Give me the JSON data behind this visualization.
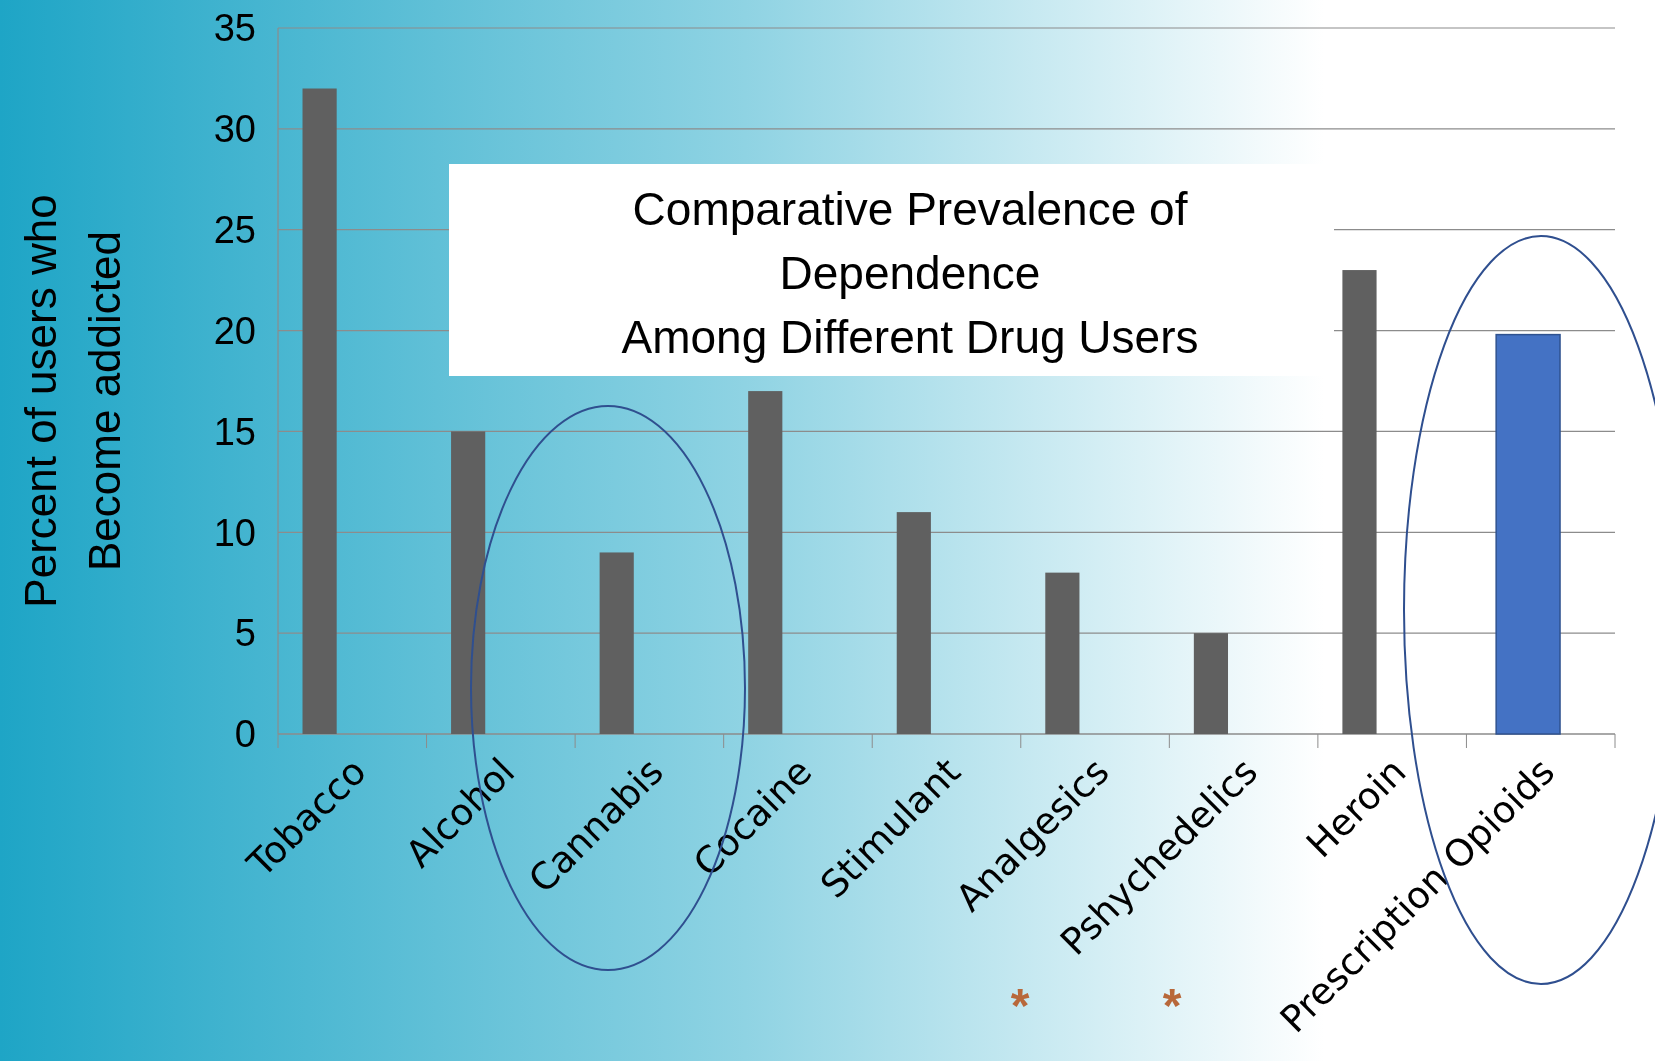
{
  "chart_data": {
    "type": "bar",
    "title": "Comparative Prevalence of\nDependence\nAmong Different Drug Users",
    "ylabel": "Percent of users who\nBecome addicted",
    "categories": [
      "Tobacco",
      "Alcohol",
      "Cannabis",
      "Cocaine",
      "Stimulant",
      "Analgesics",
      "Pshychedelics",
      "Heroin",
      "Prescription Opioids"
    ],
    "values": [
      32,
      15,
      9,
      17,
      11,
      8,
      5,
      23,
      19.8
    ],
    "colors": [
      "#606060",
      "#606060",
      "#606060",
      "#606060",
      "#606060",
      "#606060",
      "#606060",
      "#606060",
      "#4472c4"
    ],
    "ylim": [
      0,
      35
    ],
    "yticks": [
      0,
      5,
      10,
      15,
      20,
      25,
      30,
      35
    ],
    "grid": "y",
    "annotations": [
      "*",
      "*"
    ]
  }
}
